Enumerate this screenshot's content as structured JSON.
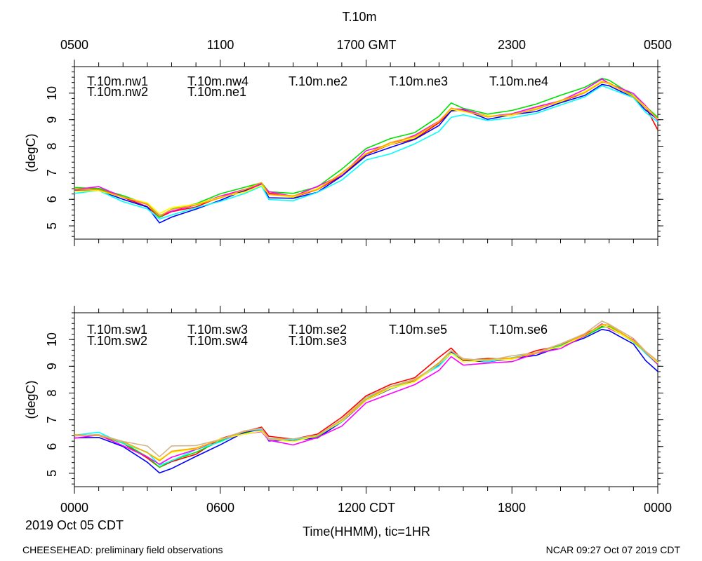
{
  "figure": {
    "title": "T.10m",
    "top_axis_ticks": [
      "0500",
      "1100",
      "1700 GMT",
      "2300",
      "0500"
    ],
    "bottom_axis_ticks": [
      "0000",
      "0600",
      "1200 CDT",
      "1800",
      "0000"
    ],
    "date_label": "2019 Oct 05 CDT",
    "xlabel": "Time(HHMM), tic=1HR",
    "footer_left": "CHEESEHEAD: preliminary field observations",
    "footer_right": "NCAR 09:27 Oct 07 2019 CDT"
  },
  "chart_data": [
    {
      "type": "line",
      "title": "T.10m",
      "ylabel": "(degC)",
      "xlabel": "Time(HHMM), tic=1HR",
      "xlim": [
        0,
        24
      ],
      "ylim": [
        4.5,
        11.0
      ],
      "yticks": [
        "5",
        "6",
        "7",
        "8",
        "9",
        "10"
      ],
      "x_hours": [
        0,
        1,
        2,
        3,
        3.5,
        4,
        5,
        6,
        7,
        7.7,
        8,
        9,
        10,
        11,
        12,
        13,
        14,
        15,
        15.5,
        16,
        17,
        18,
        19,
        20,
        21,
        21.7,
        22,
        23,
        23.5,
        24
      ],
      "series": [
        {
          "name": "T.10m.nw1",
          "color": "#ff0000",
          "values": [
            6.35,
            6.4,
            6.05,
            5.75,
            5.3,
            5.5,
            5.75,
            6.05,
            6.35,
            6.6,
            6.2,
            6.1,
            6.35,
            6.9,
            7.7,
            8.05,
            8.3,
            8.85,
            9.35,
            9.4,
            9.1,
            9.2,
            9.4,
            9.7,
            10.0,
            10.45,
            10.35,
            9.9,
            9.45,
            8.6
          ]
        },
        {
          "name": "T.10m.nw2",
          "color": "#00e000",
          "values": [
            6.4,
            6.45,
            6.1,
            5.85,
            5.35,
            5.6,
            5.85,
            6.2,
            6.45,
            6.6,
            6.3,
            6.2,
            6.5,
            7.1,
            7.95,
            8.25,
            8.55,
            9.1,
            9.6,
            9.45,
            9.2,
            9.35,
            9.6,
            9.9,
            10.25,
            10.6,
            10.45,
            9.95,
            9.5,
            9.05
          ]
        },
        {
          "name": "T.10m.nw4",
          "color": "#0000ff",
          "values": [
            6.3,
            6.35,
            6.0,
            5.7,
            5.15,
            5.35,
            5.6,
            6.0,
            6.3,
            6.55,
            6.1,
            6.0,
            6.3,
            6.85,
            7.65,
            7.95,
            8.25,
            8.8,
            9.3,
            9.35,
            9.05,
            9.15,
            9.35,
            9.6,
            9.95,
            10.35,
            10.25,
            9.85,
            9.4,
            9.0
          ]
        },
        {
          "name": "T.10m.ne1",
          "color": "#00ffff",
          "values": [
            6.25,
            6.3,
            5.95,
            5.6,
            5.25,
            5.45,
            5.65,
            5.95,
            6.2,
            6.5,
            6.0,
            5.95,
            6.25,
            6.75,
            7.45,
            7.75,
            8.05,
            8.6,
            9.1,
            9.15,
            9.0,
            9.05,
            9.25,
            9.55,
            9.85,
            10.25,
            10.2,
            9.8,
            9.3,
            8.95
          ]
        },
        {
          "name": "T.10m.ne2",
          "color": "#ff00ff",
          "values": [
            6.4,
            6.45,
            6.1,
            5.8,
            5.35,
            5.55,
            5.8,
            6.1,
            6.4,
            6.6,
            6.25,
            6.15,
            6.45,
            6.95,
            7.8,
            8.1,
            8.4,
            8.95,
            9.45,
            9.4,
            9.1,
            9.25,
            9.45,
            9.75,
            10.1,
            10.5,
            10.4,
            9.95,
            9.5,
            9.0
          ]
        },
        {
          "name": "T.10m.ne3",
          "color": "#ffff00",
          "values": [
            6.3,
            6.35,
            6.05,
            5.9,
            5.45,
            5.65,
            5.85,
            6.05,
            6.3,
            6.55,
            6.15,
            6.1,
            6.4,
            6.95,
            7.75,
            8.05,
            8.35,
            8.9,
            9.4,
            9.35,
            9.1,
            9.2,
            9.4,
            9.7,
            10.05,
            10.45,
            10.35,
            9.9,
            9.45,
            9.0
          ]
        },
        {
          "name": "T.10m.ne4",
          "color": "#ffa500",
          "values": [
            6.35,
            6.4,
            6.05,
            5.85,
            5.4,
            5.6,
            5.8,
            6.05,
            6.35,
            6.6,
            6.2,
            6.1,
            6.4,
            6.95,
            7.75,
            8.1,
            8.4,
            8.9,
            9.4,
            9.35,
            9.1,
            9.2,
            9.4,
            9.7,
            10.05,
            10.45,
            10.35,
            9.9,
            9.45,
            9.0
          ]
        }
      ]
    },
    {
      "type": "line",
      "ylabel": "(degC)",
      "xlabel": "Time(HHMM), tic=1HR",
      "xlim": [
        0,
        24
      ],
      "ylim": [
        4.5,
        11.0
      ],
      "yticks": [
        "5",
        "6",
        "7",
        "8",
        "9",
        "10"
      ],
      "x_hours": [
        0,
        1,
        2,
        3,
        3.5,
        4,
        5,
        6,
        7,
        7.7,
        8,
        9,
        10,
        11,
        12,
        13,
        14,
        15,
        15.5,
        16,
        17,
        18,
        19,
        20,
        21,
        21.7,
        22,
        23,
        23.5,
        24
      ],
      "series": [
        {
          "name": "T.10m.sw1",
          "color": "#ff0000",
          "values": [
            6.4,
            6.45,
            6.1,
            5.6,
            5.2,
            5.4,
            5.75,
            6.25,
            6.6,
            6.75,
            6.35,
            6.3,
            6.45,
            7.1,
            7.9,
            8.3,
            8.6,
            9.3,
            9.7,
            9.25,
            9.25,
            9.3,
            9.55,
            9.8,
            10.2,
            10.5,
            10.45,
            9.95,
            9.5,
            9.1
          ]
        },
        {
          "name": "T.10m.sw2",
          "color": "#00e000",
          "values": [
            6.4,
            6.45,
            6.1,
            5.65,
            5.25,
            5.45,
            5.8,
            6.2,
            6.5,
            6.65,
            6.3,
            6.25,
            6.4,
            6.95,
            7.8,
            8.2,
            8.5,
            9.1,
            9.55,
            9.25,
            9.25,
            9.3,
            9.5,
            9.75,
            10.15,
            10.5,
            10.45,
            9.95,
            9.5,
            9.1
          ]
        },
        {
          "name": "T.10m.sw3",
          "color": "#0000ff",
          "values": [
            6.3,
            6.35,
            6.0,
            5.4,
            5.05,
            5.2,
            5.6,
            6.1,
            6.5,
            6.6,
            6.25,
            6.2,
            6.35,
            6.9,
            7.75,
            8.15,
            8.45,
            9.05,
            9.5,
            9.2,
            9.2,
            9.25,
            9.45,
            9.7,
            10.1,
            10.4,
            10.3,
            9.85,
            9.25,
            8.8
          ]
        },
        {
          "name": "T.10m.sw4",
          "color": "#00ffff",
          "values": [
            6.45,
            6.5,
            6.15,
            5.75,
            5.3,
            5.5,
            5.85,
            6.2,
            6.55,
            6.65,
            6.3,
            6.25,
            6.4,
            6.95,
            7.8,
            8.2,
            8.45,
            9.05,
            9.5,
            9.25,
            9.2,
            9.3,
            9.5,
            9.75,
            10.15,
            10.5,
            10.45,
            9.95,
            9.5,
            9.1
          ]
        },
        {
          "name": "T.10m.se2",
          "color": "#ff00ff",
          "values": [
            6.35,
            6.4,
            6.05,
            5.6,
            5.3,
            5.6,
            5.9,
            6.25,
            6.5,
            6.6,
            6.2,
            6.1,
            6.3,
            6.8,
            7.6,
            8.0,
            8.3,
            8.85,
            9.4,
            9.05,
            9.1,
            9.2,
            9.45,
            9.7,
            10.1,
            10.55,
            10.45,
            9.95,
            9.5,
            9.1
          ]
        },
        {
          "name": "T.10m.se3",
          "color": "#ffff00",
          "values": [
            6.4,
            6.45,
            6.15,
            5.8,
            5.5,
            5.75,
            5.95,
            6.25,
            6.5,
            6.6,
            6.25,
            6.2,
            6.4,
            6.95,
            7.75,
            8.15,
            8.45,
            9.05,
            9.5,
            9.2,
            9.2,
            9.3,
            9.5,
            9.75,
            10.15,
            10.55,
            10.45,
            9.95,
            9.5,
            9.1
          ]
        },
        {
          "name": "T.10m.se5",
          "color": "#ffa500",
          "values": [
            6.4,
            6.45,
            6.15,
            5.8,
            5.5,
            5.8,
            5.95,
            6.25,
            6.55,
            6.65,
            6.3,
            6.25,
            6.45,
            6.95,
            7.8,
            8.2,
            8.5,
            9.1,
            9.55,
            9.25,
            9.25,
            9.3,
            9.5,
            9.8,
            10.2,
            10.6,
            10.5,
            10.0,
            9.55,
            9.15
          ]
        },
        {
          "name": "T.10m.se6",
          "color": "#d2b48c",
          "values": [
            6.4,
            6.45,
            6.2,
            6.0,
            5.65,
            6.05,
            6.0,
            6.3,
            6.55,
            6.65,
            6.3,
            6.25,
            6.45,
            7.0,
            7.85,
            8.25,
            8.5,
            9.1,
            9.55,
            9.25,
            9.25,
            9.35,
            9.55,
            9.8,
            10.25,
            10.7,
            10.55,
            10.05,
            9.6,
            9.2
          ]
        }
      ]
    }
  ]
}
